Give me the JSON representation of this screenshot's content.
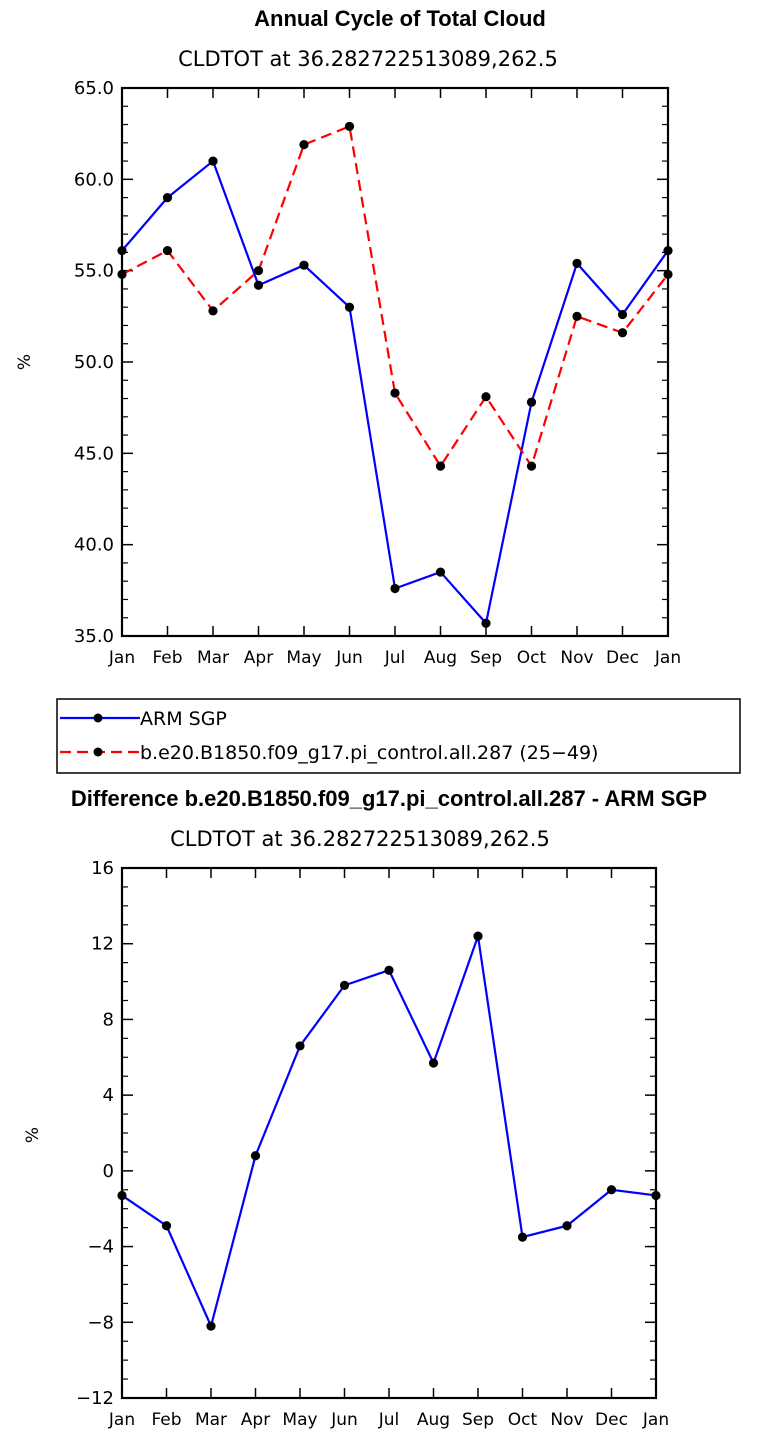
{
  "chart_data": [
    {
      "type": "line",
      "title": "Annual Cycle of Total Cloud",
      "subtitle": "CLDTOT at 36.282722513089,262.5",
      "ylabel": "%",
      "xlabel": "",
      "ylim": [
        35,
        65
      ],
      "yticks": [
        "35.0",
        "40.0",
        "45.0",
        "50.0",
        "55.0",
        "60.0",
        "65.0"
      ],
      "yticks_values": [
        35,
        40,
        45,
        50,
        55,
        60,
        65
      ],
      "categories": [
        "Jan",
        "Feb",
        "Mar",
        "Apr",
        "May",
        "Jun",
        "Jul",
        "Aug",
        "Sep",
        "Oct",
        "Nov",
        "Dec",
        "Jan"
      ],
      "series": [
        {
          "name": "ARM SGP",
          "color": "#0000ff",
          "dash": "solid",
          "values": [
            56.1,
            59.0,
            61.0,
            54.2,
            55.3,
            53.0,
            37.6,
            38.5,
            35.7,
            47.8,
            55.4,
            52.6,
            56.1
          ]
        },
        {
          "name": "b.e20.B1850.f09_g17.pi_control.all.287 (25−49)",
          "color": "#ff0000",
          "dash": "dashed",
          "values": [
            54.8,
            56.1,
            52.8,
            55.0,
            61.9,
            62.9,
            48.3,
            44.3,
            48.1,
            44.3,
            52.5,
            51.6,
            54.8
          ]
        }
      ],
      "legend": "bottom-left"
    },
    {
      "type": "line",
      "title": "Difference b.e20.B1850.f09_g17.pi_control.all.287 - ARM SGP",
      "subtitle": "CLDTOT at 36.282722513089,262.5",
      "ylabel": "%",
      "xlabel": "",
      "ylim": [
        -12,
        16
      ],
      "yticks": [
        "−12",
        "−8",
        "−4",
        "0",
        "4",
        "8",
        "12",
        "16"
      ],
      "yticks_values": [
        -12,
        -8,
        -4,
        0,
        4,
        8,
        12,
        16
      ],
      "categories": [
        "Jan",
        "Feb",
        "Mar",
        "Apr",
        "May",
        "Jun",
        "Jul",
        "Aug",
        "Sep",
        "Oct",
        "Nov",
        "Dec",
        "Jan"
      ],
      "series": [
        {
          "name": "Difference",
          "color": "#0000ff",
          "dash": "solid",
          "values": [
            -1.3,
            -2.9,
            -8.2,
            0.8,
            6.6,
            9.8,
            10.6,
            5.7,
            12.4,
            -3.5,
            -2.9,
            -1.0,
            -1.3
          ]
        }
      ]
    }
  ]
}
